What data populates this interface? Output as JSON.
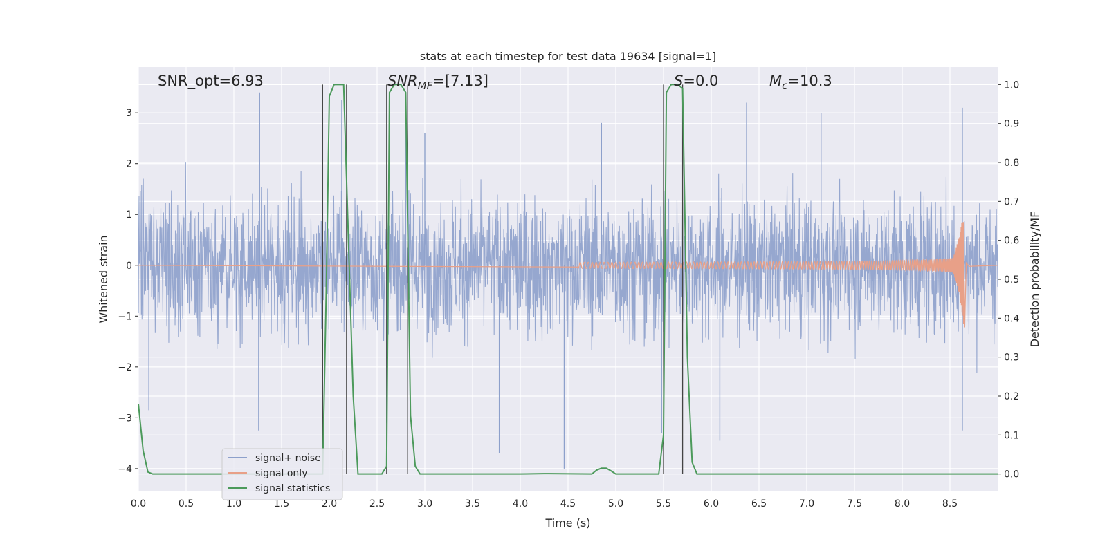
{
  "chart_data": {
    "type": "line",
    "title": "stats at each timestep for test data 19634 [signal=1]",
    "xlabel": "Time (s)",
    "ylabel_left": "Whitened strain",
    "ylabel_right": "Detection probability/MF",
    "xlim": [
      0,
      9.0
    ],
    "ylim_left": [
      -4.45,
      3.9
    ],
    "ylim_right": [
      -0.045,
      1.045
    ],
    "x_ticks": [
      0.0,
      0.5,
      1.0,
      1.5,
      2.0,
      2.5,
      3.0,
      3.5,
      4.0,
      4.5,
      5.0,
      5.5,
      6.0,
      6.5,
      7.0,
      7.5,
      8.0,
      8.5
    ],
    "x_tick_labels": [
      "0.0",
      "0.5",
      "1.0",
      "1.5",
      "2.0",
      "2.5",
      "3.0",
      "3.5",
      "4.0",
      "4.5",
      "5.0",
      "5.5",
      "6.0",
      "6.5",
      "7.0",
      "7.5",
      "8.0",
      "8.5"
    ],
    "y_left_ticks": [
      -4,
      -3,
      -2,
      -1,
      0,
      1,
      2,
      3
    ],
    "y_left_tick_labels": [
      "−4",
      "−3",
      "−2",
      "−1",
      "0",
      "1",
      "2",
      "3"
    ],
    "y_right_ticks": [
      0.0,
      0.1,
      0.2,
      0.3,
      0.4,
      0.5,
      0.6,
      0.7,
      0.8,
      0.9,
      1.0
    ],
    "y_right_tick_labels": [
      "0.0",
      "0.1",
      "0.2",
      "0.3",
      "0.4",
      "0.5",
      "0.6",
      "0.7",
      "0.8",
      "0.9",
      "1.0"
    ],
    "grid": true,
    "annotations": [
      {
        "name": "snr-opt",
        "text": "SNR_opt=6.93"
      },
      {
        "name": "snr-mf",
        "text": "SNR_MF=[7.13]"
      },
      {
        "name": "s-value",
        "text": "S=0.0"
      },
      {
        "name": "chirp-mass",
        "text": "M_c=10.3"
      }
    ],
    "legend": {
      "placement": "lower-left",
      "entries": [
        "signal+ noise",
        "signal only",
        "signal statistics"
      ]
    },
    "series": [
      {
        "name": "signal+ noise",
        "axis": "left",
        "color": "#8da0cb",
        "kind": "noise",
        "typical_envelope": [
          -2.0,
          2.0
        ],
        "peaks": [
          {
            "x": 1.27,
            "y": 3.4
          },
          {
            "x": 1.93,
            "y": 2.9
          },
          {
            "x": 2.13,
            "y": 3.25
          },
          {
            "x": 2.8,
            "y": 3.1
          },
          {
            "x": 6.37,
            "y": 3.2
          },
          {
            "x": 8.63,
            "y": 3.1
          },
          {
            "x": 3.0,
            "y": 2.6
          },
          {
            "x": 4.85,
            "y": 2.8
          },
          {
            "x": 7.15,
            "y": 3.0
          }
        ],
        "troughs": [
          {
            "x": 4.46,
            "y": -4.0
          },
          {
            "x": 1.26,
            "y": -3.25
          },
          {
            "x": 3.78,
            "y": -3.7
          },
          {
            "x": 5.48,
            "y": -3.3
          },
          {
            "x": 6.09,
            "y": -3.45
          },
          {
            "x": 8.63,
            "y": -3.25
          },
          {
            "x": 2.6,
            "y": -3.1
          },
          {
            "x": 0.11,
            "y": -2.85
          }
        ]
      },
      {
        "name": "signal only",
        "axis": "left",
        "color": "#e8a088",
        "kind": "chirp",
        "onset_time": 4.6,
        "merger_time": 8.65,
        "peak_amplitude": 0.85,
        "min_amplitude": -1.22
      },
      {
        "name": "signal statistics",
        "axis": "right",
        "color": "#4c9a5b",
        "x": [
          0.0,
          0.05,
          0.1,
          0.15,
          1.88,
          1.93,
          1.97,
          2.0,
          2.05,
          2.1,
          2.15,
          2.2,
          2.25,
          2.3,
          2.35,
          2.55,
          2.6,
          2.63,
          2.68,
          2.75,
          2.8,
          2.85,
          2.9,
          2.95,
          3.0,
          4.0,
          4.25,
          4.3,
          4.75,
          4.8,
          4.85,
          4.9,
          4.95,
          5.0,
          5.45,
          5.5,
          5.53,
          5.58,
          5.65,
          5.7,
          5.75,
          5.8,
          5.85,
          5.9,
          9.0
        ],
        "y": [
          0.18,
          0.06,
          0.005,
          0.0,
          0.0,
          0.0,
          0.5,
          0.97,
          1.0,
          1.0,
          1.0,
          0.6,
          0.2,
          0.0,
          0.0,
          0.0,
          0.02,
          0.98,
          1.0,
          1.0,
          0.98,
          0.15,
          0.02,
          0.0,
          0.0,
          0.0,
          0.001,
          0.001,
          0.0,
          0.01,
          0.015,
          0.015,
          0.008,
          0.0,
          0.0,
          0.1,
          0.98,
          1.0,
          1.0,
          0.99,
          0.3,
          0.03,
          0.0,
          0.0,
          0.0
        ]
      }
    ],
    "vertical_lines": [
      1.93,
      2.18,
      2.6,
      2.82,
      5.5,
      5.7
    ]
  }
}
